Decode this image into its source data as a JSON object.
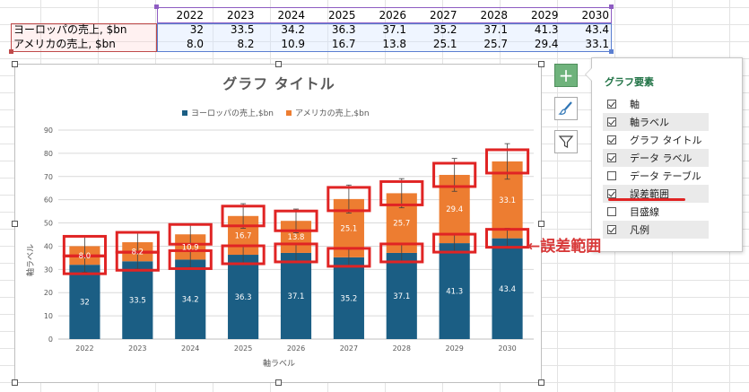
{
  "sheet": {
    "header_years": [
      "2022",
      "2023",
      "2024",
      "2025",
      "2026",
      "2027",
      "2028",
      "2029",
      "2030"
    ],
    "rows": [
      {
        "label": "ヨーロッパの売上, $bn",
        "values": [
          "32",
          "33.5",
          "34.2",
          "36.3",
          "37.1",
          "35.2",
          "37.1",
          "41.3",
          "43.4"
        ]
      },
      {
        "label": "アメリカの売上, $bn",
        "values": [
          "8.0",
          "8.2",
          "10.9",
          "16.7",
          "13.8",
          "25.1",
          "25.7",
          "29.4",
          "33.1"
        ]
      }
    ]
  },
  "chart": {
    "title": "グラフ タイトル",
    "legend": [
      "ヨーロッパの売上,$bn",
      "アメリカの売上,$bn"
    ],
    "y_axis_title": "軸ラベル",
    "x_axis_title": "軸ラベル"
  },
  "chart_data": {
    "type": "bar",
    "stacked": true,
    "categories": [
      "2022",
      "2023",
      "2024",
      "2025",
      "2026",
      "2027",
      "2028",
      "2029",
      "2030"
    ],
    "series": [
      {
        "name": "ヨーロッパの売上,$bn",
        "values": [
          32,
          33.5,
          34.2,
          36.3,
          37.1,
          35.2,
          37.1,
          41.3,
          43.4
        ],
        "color": "#1b5e84",
        "labels": [
          "32",
          "33.5",
          "34.2",
          "36.3",
          "37.1",
          "35.2",
          "37.1",
          "41.3",
          "43.4"
        ]
      },
      {
        "name": "アメリカの売上,$bn",
        "values": [
          8.0,
          8.2,
          10.9,
          16.7,
          13.8,
          25.1,
          25.7,
          29.4,
          33.1
        ],
        "color": "#ed7d31",
        "labels": [
          "8.0",
          "8.2",
          "10.9",
          "16.7",
          "13.8",
          "25.1",
          "25.7",
          "29.4",
          "33.1"
        ]
      }
    ],
    "error_bars": true,
    "error_percent": 10,
    "ylim": [
      0,
      90
    ],
    "yticks": [
      0,
      10,
      20,
      30,
      40,
      50,
      60,
      70,
      80,
      90
    ],
    "grid": true,
    "legend_position": "top",
    "title": "グラフ タイトル",
    "xlabel": "軸ラベル",
    "ylabel": "軸ラベル"
  },
  "panel": {
    "title": "グラフ要素",
    "options": [
      {
        "label": "軸",
        "checked": true
      },
      {
        "label": "軸ラベル",
        "checked": true
      },
      {
        "label": "グラフ タイトル",
        "checked": true
      },
      {
        "label": "データ ラベル",
        "checked": true
      },
      {
        "label": "データ テーブル",
        "checked": false
      },
      {
        "label": "誤差範囲",
        "checked": true
      },
      {
        "label": "目盛線",
        "checked": false
      },
      {
        "label": "凡例",
        "checked": true
      }
    ]
  },
  "side_buttons": {
    "add": "+"
  },
  "annotation": {
    "text": "←誤差範囲"
  },
  "colors": {
    "highlight": "#e02424",
    "europe": "#1b5e84",
    "america": "#ed7d31",
    "panel_title": "#217346"
  }
}
